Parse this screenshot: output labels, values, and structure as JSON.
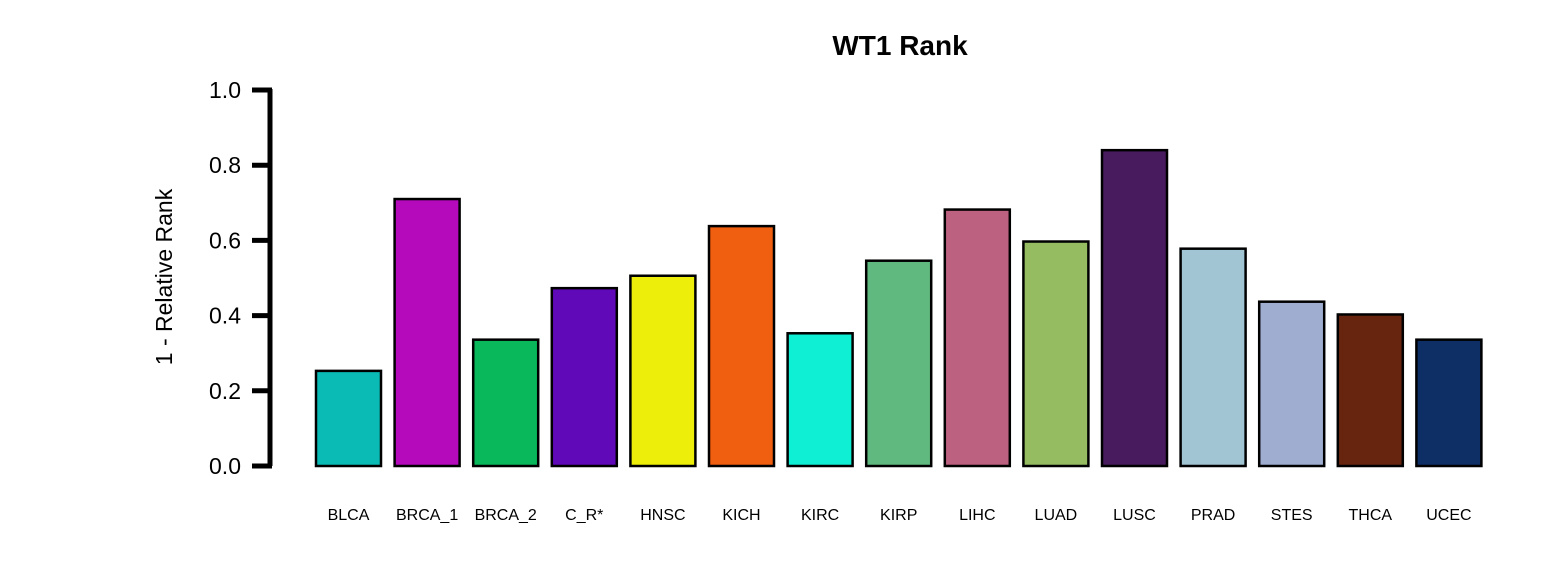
{
  "chart_data": {
    "type": "bar",
    "title": "WT1 Rank",
    "xlabel": "",
    "ylabel": "1 - Relative Rank",
    "ylim": [
      0,
      1.0
    ],
    "yticks": [
      "0.0",
      "0.2",
      "0.4",
      "0.6",
      "0.8",
      "1.0"
    ],
    "grid": false,
    "categories": [
      "BLCA",
      "BRCA_1",
      "BRCA_2",
      "C_R*",
      "HNSC",
      "KICH",
      "KIRC",
      "KIRP",
      "LIHC",
      "LUAD",
      "LUSC",
      "PRAD",
      "STES",
      "THCA",
      "UCEC"
    ],
    "values": [
      0.253,
      0.71,
      0.336,
      0.473,
      0.506,
      0.638,
      0.353,
      0.546,
      0.682,
      0.597,
      0.84,
      0.578,
      0.437,
      0.403,
      0.336
    ],
    "colors": [
      "#0ABAB5",
      "#B40ABC",
      "#08B85A",
      "#5F09B9",
      "#EDEF0B",
      "#F05E0F",
      "#0FEFD3",
      "#60BA80",
      "#BC6180",
      "#96BC62",
      "#471B5E",
      "#A2C5D3",
      "#9FADD1",
      "#672510",
      "#0E2E66"
    ]
  }
}
